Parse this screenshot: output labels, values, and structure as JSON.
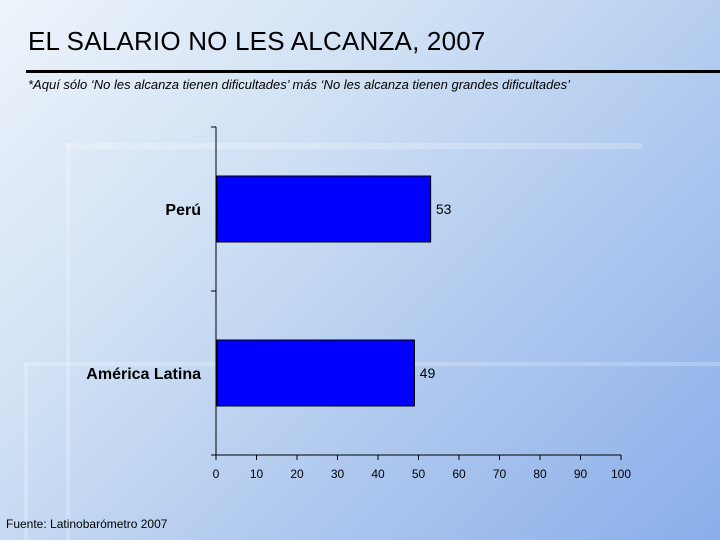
{
  "slide": {
    "title": "EL SALARIO NO LES ALCANZA, 2007",
    "subtitle": "*Aquí sólo ‘No les alcanza tienen dificultades’ más ‘No les alcanza tienen grandes dificultades’",
    "source": "Fuente: Latinobarómetro 2007"
  },
  "chart_data": {
    "type": "bar",
    "orientation": "horizontal",
    "categories": [
      "Perú",
      "América Latina"
    ],
    "values": [
      53,
      49
    ],
    "xlim": [
      0,
      100
    ],
    "xticks": [
      0,
      10,
      20,
      30,
      40,
      50,
      60,
      70,
      80,
      90,
      100
    ],
    "bar_color": "#0000ff",
    "grid": false,
    "legend": "none"
  }
}
